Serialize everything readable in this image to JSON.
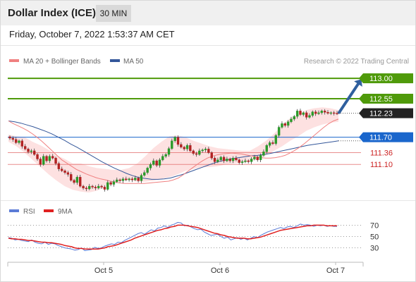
{
  "header": {
    "title": "Dollar Index (ICE)",
    "interval": "30 MIN",
    "datetime": "Friday, October 7, 2022 1:53:37 AM CET"
  },
  "legend": {
    "ma20": "MA 20 + Bollinger Bands",
    "ma50": "MA 50",
    "rsi": "RSI",
    "ma9": "9MA"
  },
  "credit": "Research © 2022 Trading Central",
  "colors": {
    "candle_up": "#2a9a2a",
    "candle_down": "#b22222",
    "ma20": "#f08080",
    "ma50": "#34579a",
    "bollinger_fill": "#fde1e1",
    "target_green": "#4f9a0a",
    "pivot_blue": "#1a66cc",
    "support_red": "#e06060",
    "last_price_bg": "#222222",
    "rsi_line": "#5b7bd6",
    "rsi_ma": "#e02020",
    "arrow": "#2f5f9e"
  },
  "chart_data": [
    {
      "type": "candlestick",
      "ylim": [
        110.45,
        113.25
      ],
      "x_ticks": [
        "Oct 5",
        "Oct 6",
        "Oct 7"
      ],
      "levels": [
        {
          "label": "113.00",
          "value": 113.0,
          "kind": "target"
        },
        {
          "label": "112.55",
          "value": 112.55,
          "kind": "target"
        },
        {
          "label": "112.23",
          "value": 112.23,
          "kind": "last"
        },
        {
          "label": "111.70",
          "value": 111.7,
          "kind": "pivot"
        },
        {
          "label": "111.36",
          "value": 111.36,
          "kind": "support"
        },
        {
          "label": "111.10",
          "value": 111.1,
          "kind": "support"
        }
      ],
      "close": [
        111.68,
        111.65,
        111.58,
        111.62,
        111.5,
        111.44,
        111.38,
        111.4,
        111.32,
        111.22,
        111.1,
        111.28,
        111.18,
        111.28,
        111.24,
        111.12,
        111.0,
        110.96,
        110.92,
        110.88,
        110.75,
        110.7,
        110.82,
        110.62,
        110.58,
        110.56,
        110.62,
        110.6,
        110.58,
        110.62,
        110.6,
        110.55,
        110.7,
        110.66,
        110.72,
        110.76,
        110.74,
        110.78,
        110.76,
        110.78,
        110.76,
        110.8,
        110.74,
        110.86,
        110.92,
        111.02,
        111.1,
        111.18,
        111.08,
        111.2,
        111.28,
        111.32,
        111.45,
        111.62,
        111.7,
        111.54,
        111.48,
        111.44,
        111.52,
        111.4,
        111.34,
        111.32,
        111.4,
        111.42,
        111.44,
        111.36,
        111.24,
        111.16,
        111.2,
        111.26,
        111.18,
        111.22,
        111.18,
        111.24,
        111.2,
        111.14,
        111.16,
        111.18,
        111.16,
        111.22,
        111.26,
        111.2,
        111.3,
        111.38,
        111.52,
        111.58,
        111.56,
        111.74,
        111.92,
        112.0,
        111.96,
        112.04,
        112.1,
        112.16,
        112.28,
        112.2,
        112.24,
        112.14,
        112.18,
        112.26,
        112.22,
        112.24,
        112.28,
        112.25,
        112.23,
        112.24,
        112.23,
        112.22
      ],
      "ma20": [
        112.06,
        112.0,
        111.95,
        111.9,
        111.84,
        111.77,
        111.69,
        111.6,
        111.5,
        111.4,
        111.3,
        111.2,
        111.13,
        111.06,
        110.99,
        110.94,
        110.89,
        110.85,
        110.81,
        110.78,
        110.76,
        110.73,
        110.71,
        110.69,
        110.68,
        110.68,
        110.68,
        110.68,
        110.68,
        110.69,
        110.7,
        110.71,
        110.72,
        110.73,
        110.76,
        110.8,
        110.87,
        110.95,
        111.03,
        111.11,
        111.18,
        111.24,
        111.28,
        111.31,
        111.33,
        111.34,
        111.35,
        111.34,
        111.33,
        111.31,
        111.29,
        111.27,
        111.25,
        111.24,
        111.24,
        111.25,
        111.27,
        111.3,
        111.35,
        111.41,
        111.48,
        111.56,
        111.65,
        111.74,
        111.83,
        111.92,
        112.0,
        112.06,
        112.1
      ],
      "ma50": [
        112.06,
        112.04,
        112.01,
        111.97,
        111.93,
        111.88,
        111.83,
        111.77,
        111.7,
        111.63,
        111.55,
        111.48,
        111.4,
        111.32,
        111.24,
        111.16,
        111.09,
        111.02,
        110.96,
        110.9,
        110.85,
        110.81,
        110.79,
        110.77,
        110.77,
        110.78,
        110.8,
        110.84,
        110.88,
        110.93,
        110.98,
        111.03,
        111.08,
        111.13,
        111.17,
        111.2,
        111.23,
        111.25,
        111.27,
        111.29,
        111.3,
        111.32,
        111.34,
        111.37,
        111.4,
        111.43,
        111.46,
        111.49,
        111.52,
        111.54,
        111.56,
        111.58,
        111.6,
        111.62
      ],
      "bb_upper": [
        111.76,
        111.72,
        111.7,
        111.6,
        111.52,
        111.42,
        111.3,
        111.22,
        111.12,
        111.12,
        111.06,
        111.02,
        111.0,
        110.98,
        110.98,
        111.02,
        111.12,
        111.28,
        111.46,
        111.6,
        111.72,
        111.74,
        111.7,
        111.62,
        111.56,
        111.5,
        111.46,
        111.44,
        111.42,
        111.4,
        111.4,
        111.5,
        111.62,
        111.78,
        111.96,
        112.12,
        112.2,
        112.3,
        112.34,
        112.36,
        112.34,
        112.3
      ],
      "bb_lower": [
        111.6,
        111.5,
        111.36,
        111.2,
        111.04,
        110.88,
        110.74,
        110.62,
        110.54,
        110.5,
        110.48,
        110.52,
        110.6,
        110.7,
        110.74,
        110.76,
        110.72,
        110.72,
        110.74,
        110.78,
        110.82,
        110.88,
        110.96,
        111.0,
        111.04,
        111.04,
        111.06,
        111.1,
        111.12,
        111.14,
        111.16,
        111.22,
        111.3,
        111.4,
        111.5,
        111.62,
        111.72,
        111.84,
        111.92,
        111.98,
        112.02,
        112.04
      ],
      "target_arrow": {
        "from": 112.23,
        "to": 113.0
      }
    },
    {
      "type": "line",
      "name": "RSI",
      "y_ticks": [
        70,
        50,
        30
      ],
      "ylim": [
        12,
        88
      ],
      "rsi": [
        48,
        47,
        44,
        45,
        43,
        42,
        41,
        44,
        40,
        38,
        37,
        40,
        36,
        38,
        37,
        34,
        32,
        30,
        29,
        28,
        26,
        27,
        30,
        25,
        26,
        27,
        31,
        29,
        30,
        33,
        35,
        37,
        36,
        40,
        39,
        43,
        46,
        49,
        52,
        55,
        57,
        54,
        58,
        62,
        60,
        65,
        66,
        69,
        66,
        70,
        72,
        75,
        74,
        69,
        70,
        67,
        64,
        62,
        63,
        58,
        55,
        52,
        53,
        54,
        50,
        47,
        49,
        44,
        46,
        48,
        45,
        47,
        44,
        47,
        50,
        48,
        52,
        55,
        58,
        60,
        62,
        64,
        66,
        64,
        67,
        68,
        66,
        69,
        72,
        70,
        71,
        70,
        68,
        70,
        69,
        70,
        68,
        69,
        68,
        68
      ],
      "ma9": [
        47,
        46,
        46,
        45,
        45,
        44,
        43,
        43,
        42,
        41,
        40,
        40,
        39,
        39,
        38,
        37,
        36,
        34,
        33,
        32,
        30,
        29,
        29,
        28,
        28,
        28,
        28,
        28,
        29,
        30,
        32,
        33,
        34,
        36,
        38,
        40,
        42,
        44,
        47,
        49,
        51,
        53,
        55,
        57,
        59,
        61,
        62,
        64,
        65,
        67,
        68,
        70,
        70,
        70,
        69,
        68,
        67,
        66,
        64,
        62,
        60,
        58,
        56,
        55,
        53,
        52,
        50,
        49,
        48,
        47,
        47,
        47,
        46,
        46,
        47,
        48,
        49,
        51,
        53,
        55,
        57,
        59,
        61,
        62,
        63,
        64,
        65,
        66,
        67,
        68,
        69,
        69,
        70,
        70,
        70,
        70,
        69,
        69,
        69,
        69
      ]
    }
  ]
}
